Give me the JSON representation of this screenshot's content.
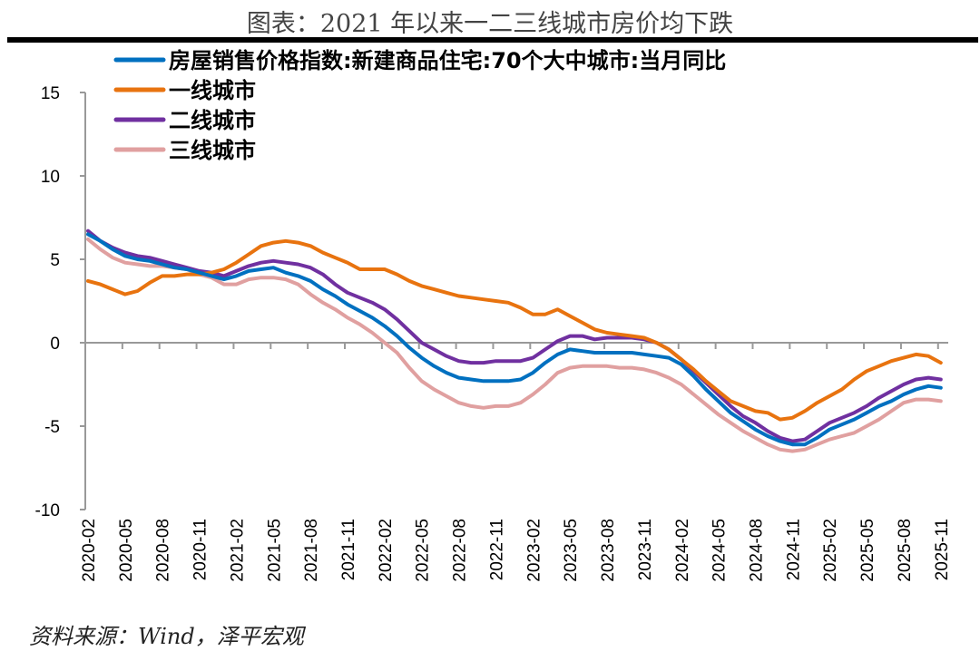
{
  "header": {
    "title": "图表：2021 年以来一二三线城市房价均下跌"
  },
  "footer": {
    "source": "资料来源：Wind，泽平宏观"
  },
  "chart_data": {
    "type": "line",
    "title": "",
    "xlabel": "",
    "ylabel": "",
    "ylim": [
      -10,
      15
    ],
    "yticks": [
      15,
      10,
      5,
      0,
      -5,
      -10
    ],
    "grid": false,
    "legend_position": "top-left",
    "x_tick_labels": [
      "2020-02",
      "2020-05",
      "2020-08",
      "2020-11",
      "2021-02",
      "2021-05",
      "2021-08",
      "2021-11",
      "2022-02",
      "2022-05",
      "2022-08",
      "2022-11",
      "2023-02",
      "2023-05",
      "2023-08",
      "2023-11",
      "2024-02",
      "2024-05",
      "2024-08",
      "2024-11",
      "2025-02",
      "2025-05",
      "2025-08",
      "2025-11"
    ],
    "x_start": "2020-02",
    "x_end": "2025-11",
    "series": [
      {
        "name": "房屋销售价格指数:新建商品住宅:70个大中城市:当月同比",
        "color": "#0070C0",
        "values": [
          6.5,
          6.1,
          5.6,
          5.2,
          5.0,
          4.9,
          4.7,
          4.5,
          4.4,
          4.2,
          4.0,
          3.8,
          4.0,
          4.3,
          4.4,
          4.5,
          4.2,
          4.0,
          3.7,
          3.2,
          2.8,
          2.3,
          1.9,
          1.5,
          1.0,
          0.4,
          -0.3,
          -0.9,
          -1.4,
          -1.8,
          -2.1,
          -2.2,
          -2.3,
          -2.3,
          -2.3,
          -2.2,
          -1.8,
          -1.2,
          -0.7,
          -0.4,
          -0.5,
          -0.6,
          -0.6,
          -0.6,
          -0.6,
          -0.7,
          -0.8,
          -0.9,
          -1.3,
          -2.0,
          -2.8,
          -3.5,
          -4.2,
          -4.7,
          -5.2,
          -5.6,
          -5.9,
          -6.1,
          -6.1,
          -5.7,
          -5.2,
          -4.9,
          -4.6,
          -4.2,
          -3.8,
          -3.5,
          -3.1,
          -2.8,
          -2.6,
          -2.7
        ]
      },
      {
        "name": "一线城市",
        "color": "#E8730F",
        "values": [
          3.7,
          3.5,
          3.2,
          2.9,
          3.1,
          3.6,
          4.0,
          4.0,
          4.1,
          4.1,
          4.2,
          4.4,
          4.8,
          5.3,
          5.8,
          6.0,
          6.1,
          6.0,
          5.8,
          5.4,
          5.1,
          4.8,
          4.4,
          4.4,
          4.4,
          4.1,
          3.7,
          3.4,
          3.2,
          3.0,
          2.8,
          2.7,
          2.6,
          2.5,
          2.4,
          2.1,
          1.7,
          1.7,
          2.0,
          1.6,
          1.2,
          0.8,
          0.6,
          0.5,
          0.4,
          0.3,
          0.0,
          -0.4,
          -1.0,
          -1.6,
          -2.3,
          -2.9,
          -3.5,
          -3.8,
          -4.1,
          -4.2,
          -4.6,
          -4.5,
          -4.1,
          -3.6,
          -3.2,
          -2.8,
          -2.2,
          -1.7,
          -1.4,
          -1.1,
          -0.9,
          -0.7,
          -0.8,
          -1.2
        ]
      },
      {
        "name": "二线城市",
        "color": "#7030A0",
        "values": [
          6.7,
          6.1,
          5.7,
          5.4,
          5.2,
          5.1,
          4.9,
          4.7,
          4.5,
          4.3,
          4.2,
          4.0,
          4.3,
          4.6,
          4.8,
          4.9,
          4.8,
          4.7,
          4.5,
          4.1,
          3.5,
          3.0,
          2.7,
          2.4,
          2.0,
          1.4,
          0.7,
          0.0,
          -0.4,
          -0.8,
          -1.1,
          -1.2,
          -1.2,
          -1.1,
          -1.1,
          -1.1,
          -0.9,
          -0.4,
          0.1,
          0.4,
          0.4,
          0.2,
          0.3,
          0.3,
          0.3,
          0.2,
          0.0,
          -0.4,
          -1.0,
          -1.7,
          -2.4,
          -3.1,
          -3.8,
          -4.4,
          -4.8,
          -5.3,
          -5.7,
          -5.9,
          -5.8,
          -5.3,
          -4.8,
          -4.5,
          -4.2,
          -3.8,
          -3.3,
          -2.9,
          -2.5,
          -2.2,
          -2.1,
          -2.2
        ]
      },
      {
        "name": "三线城市",
        "color": "#E0A0A0",
        "values": [
          6.2,
          5.6,
          5.1,
          4.8,
          4.7,
          4.6,
          4.6,
          4.5,
          4.4,
          4.1,
          3.9,
          3.5,
          3.5,
          3.8,
          3.9,
          3.9,
          3.8,
          3.5,
          2.9,
          2.4,
          2.0,
          1.5,
          1.1,
          0.6,
          0.0,
          -0.6,
          -1.5,
          -2.3,
          -2.8,
          -3.2,
          -3.6,
          -3.8,
          -3.9,
          -3.8,
          -3.8,
          -3.6,
          -3.1,
          -2.5,
          -1.8,
          -1.5,
          -1.4,
          -1.4,
          -1.4,
          -1.5,
          -1.5,
          -1.6,
          -1.8,
          -2.1,
          -2.5,
          -3.1,
          -3.7,
          -4.3,
          -4.8,
          -5.3,
          -5.7,
          -6.1,
          -6.4,
          -6.5,
          -6.4,
          -6.1,
          -5.8,
          -5.6,
          -5.4,
          -5.0,
          -4.6,
          -4.1,
          -3.6,
          -3.4,
          -3.4,
          -3.5
        ]
      }
    ]
  }
}
